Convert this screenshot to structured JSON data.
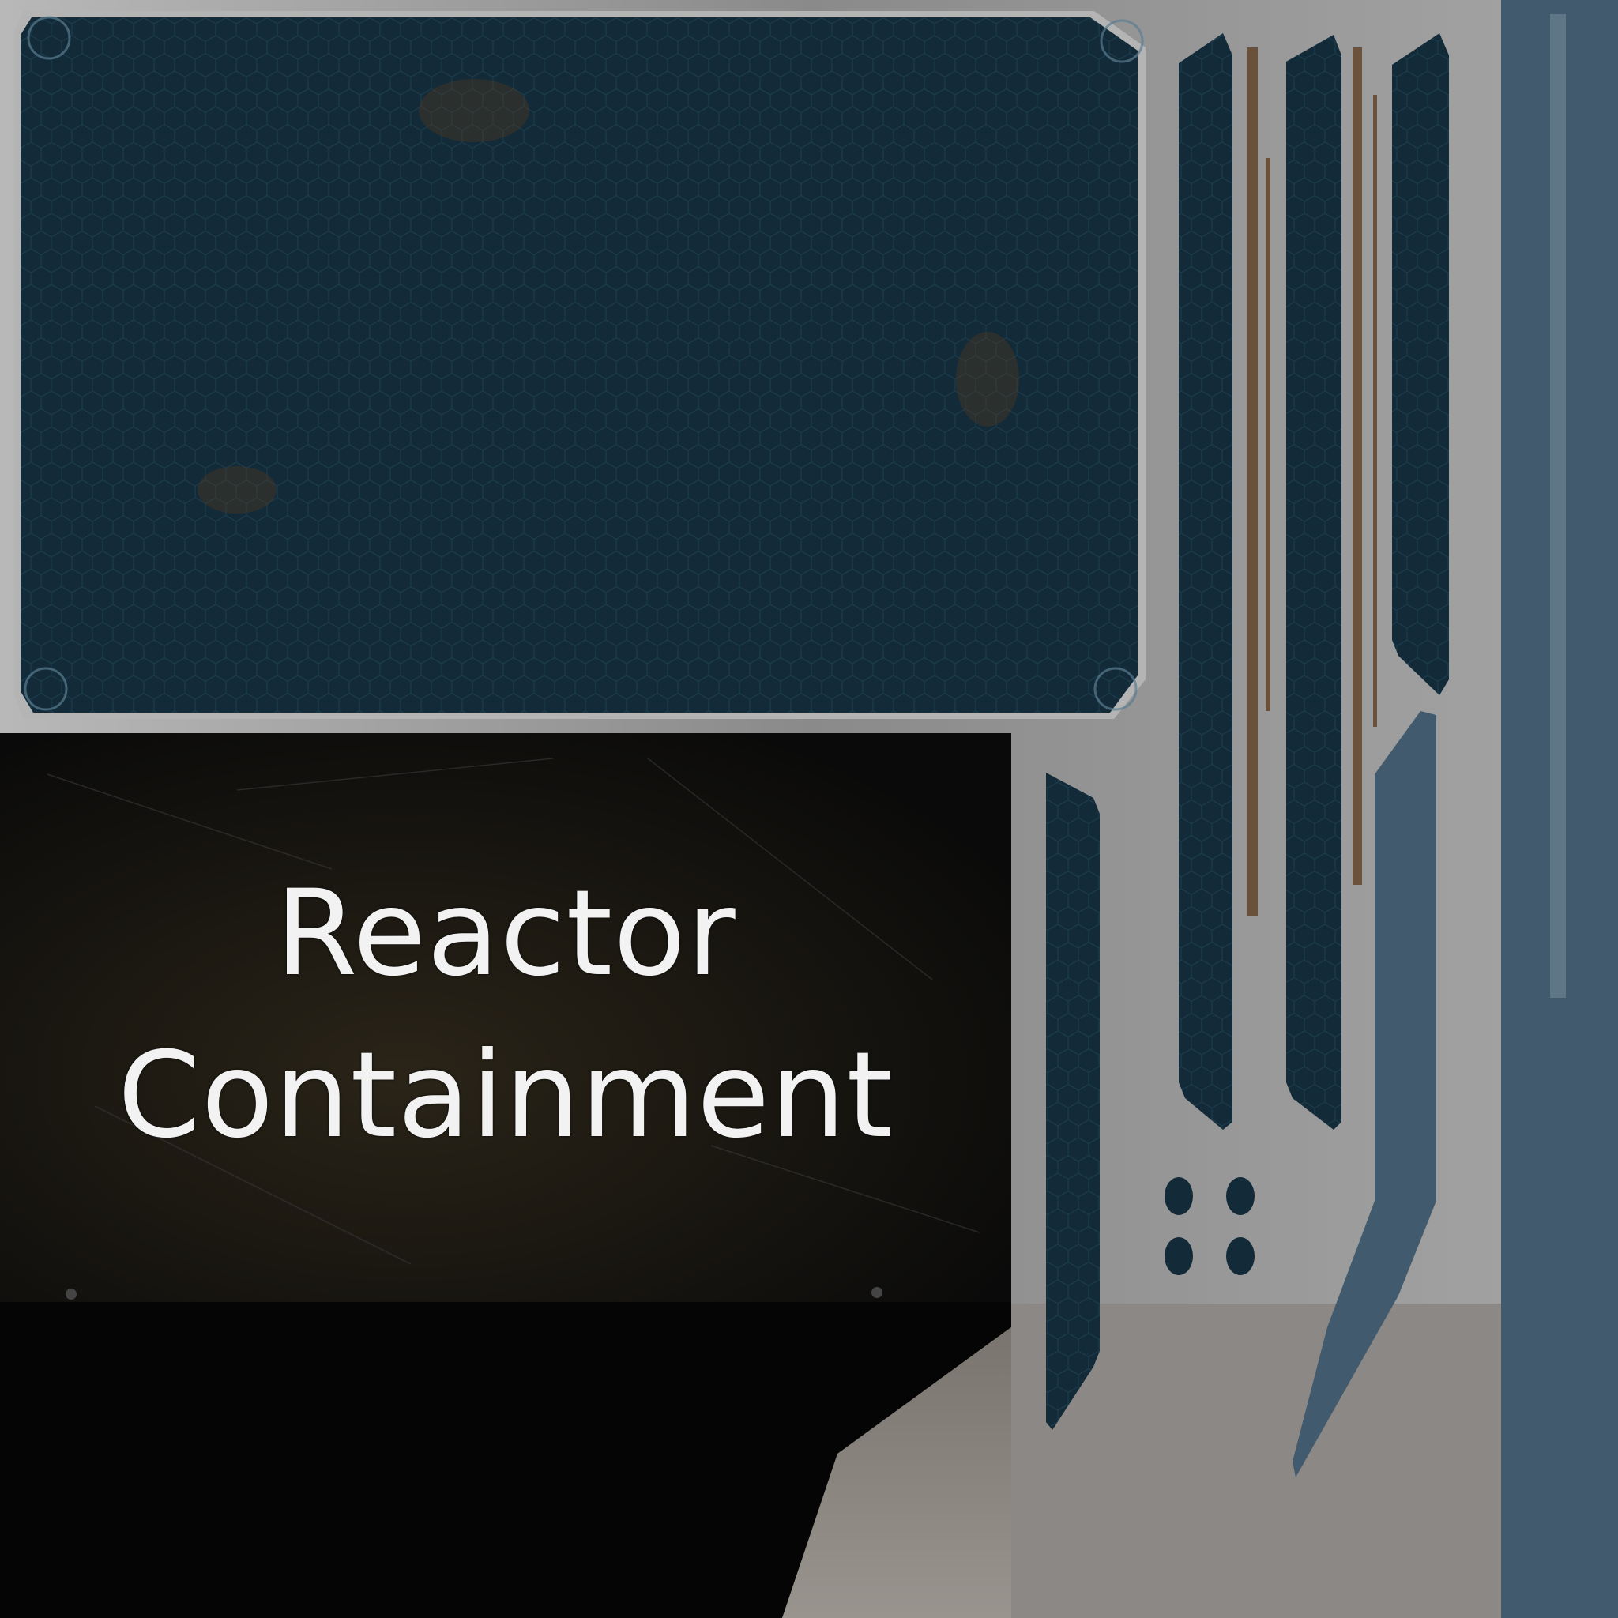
{
  "sign": {
    "line1": "Reactor",
    "line2": "Containment"
  },
  "colors": {
    "panel_blue": "#132a38",
    "slate_blue": "#415a6d",
    "sign_black": "#0b0b0b",
    "metal_grey": "#9a9a9a",
    "rust": "#5a3a1c"
  }
}
